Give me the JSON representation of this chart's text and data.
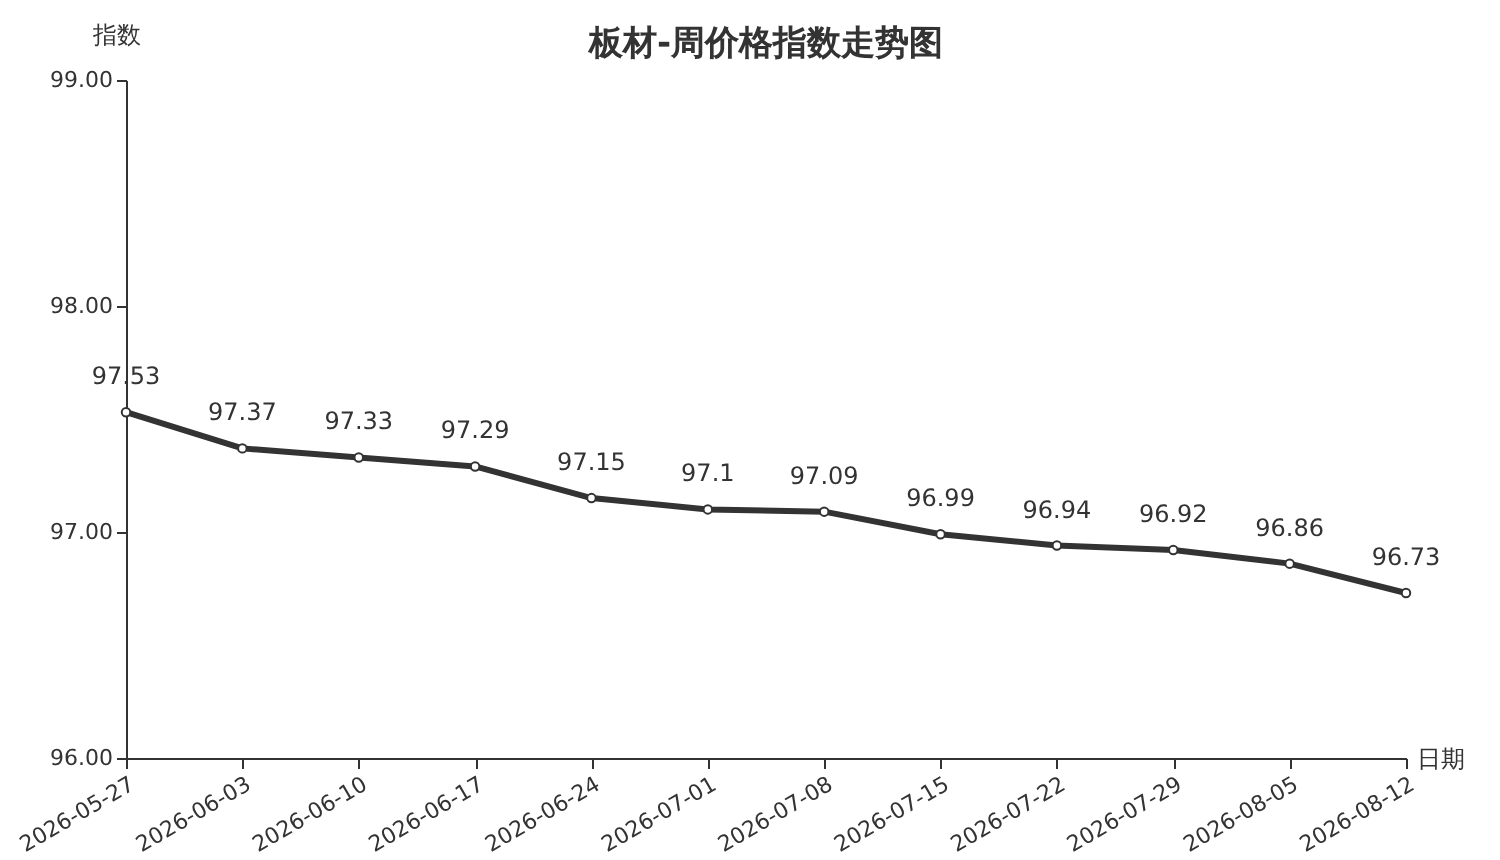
{
  "chart_data": {
    "type": "line",
    "title": "板材-周价格指数走势图",
    "xlabel": "日期",
    "ylabel": "指数",
    "categories": [
      "2026-05-27",
      "2026-06-03",
      "2026-06-10",
      "2026-06-17",
      "2026-06-24",
      "2026-07-01",
      "2026-07-08",
      "2026-07-15",
      "2026-07-22",
      "2026-07-29",
      "2026-08-05",
      "2026-08-12"
    ],
    "series": [
      {
        "color": "#333333",
        "values": [
          97.53,
          97.37,
          97.33,
          97.29,
          97.15,
          97.1,
          97.09,
          96.99,
          96.94,
          96.92,
          96.86,
          96.73
        ]
      }
    ],
    "ylim": [
      96,
      99
    ],
    "yticks": [
      {
        "value": 96,
        "label": "96.00"
      },
      {
        "value": 97,
        "label": "97.00"
      },
      {
        "value": 98,
        "label": "98.00"
      },
      {
        "value": 99,
        "label": "99.00"
      }
    ],
    "data_labels": true,
    "marker": "circle",
    "line_style": "solid",
    "grid": false
  }
}
